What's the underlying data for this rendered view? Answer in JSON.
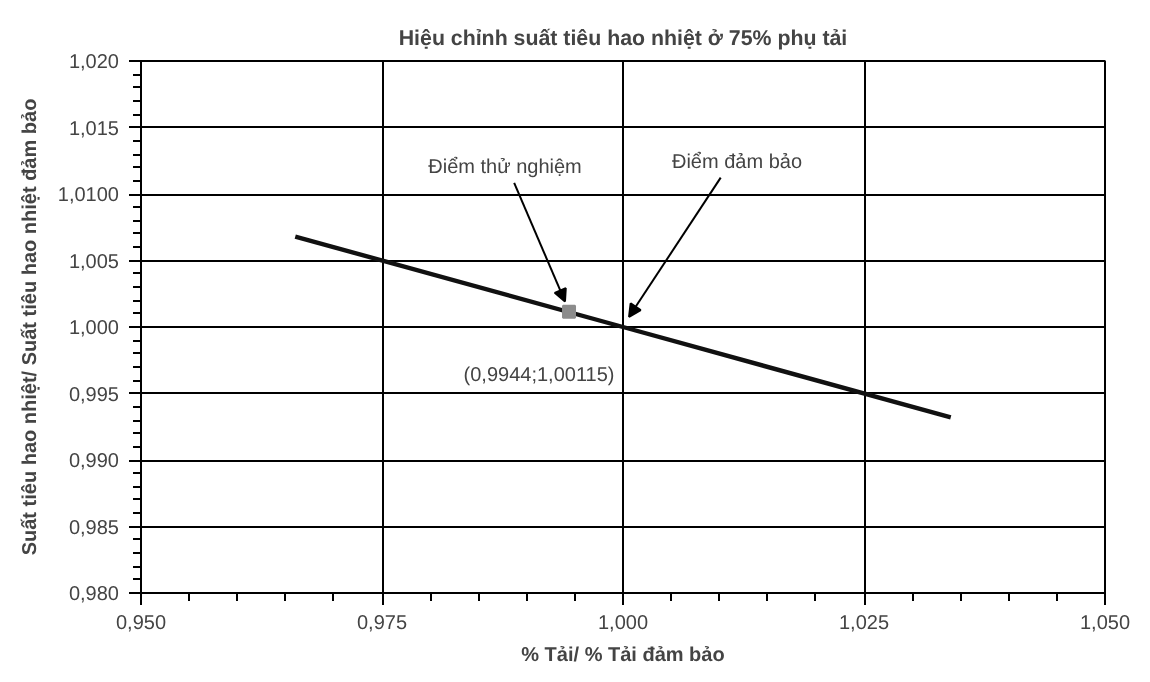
{
  "chart_data": {
    "type": "line",
    "title": "Hiệu chỉnh suất tiêu hao nhiệt ở 75% phụ tải",
    "xlabel": "% Tải/ % Tải đảm bảo",
    "ylabel": "Suất tiêu hao nhiệt/ Suất tiêu hao nhiệt đảm bảo",
    "xlim": [
      0.95,
      1.05
    ],
    "ylim": [
      0.98,
      1.02
    ],
    "xticks": [
      {
        "value": 0.95,
        "label": "0,950"
      },
      {
        "value": 0.975,
        "label": "0,975"
      },
      {
        "value": 1.0,
        "label": "1,000"
      },
      {
        "value": 1.025,
        "label": "1,025"
      },
      {
        "value": 1.05,
        "label": "1,050"
      }
    ],
    "yticks": [
      {
        "value": 0.98,
        "label": "0,980"
      },
      {
        "value": 0.985,
        "label": "0,985"
      },
      {
        "value": 0.99,
        "label": "0,990"
      },
      {
        "value": 0.995,
        "label": "0,995"
      },
      {
        "value": 1.0,
        "label": "1,000"
      },
      {
        "value": 1.005,
        "label": "1,005"
      },
      {
        "value": 1.01,
        "label": "1,0100"
      },
      {
        "value": 1.015,
        "label": "1,015"
      },
      {
        "value": 1.02,
        "label": "1,020"
      }
    ],
    "grid": true,
    "series": [
      {
        "color": "#111111",
        "x": [
          0.966,
          1.0,
          1.034
        ],
        "values": [
          1.0068,
          1.0,
          0.9932
        ]
      },
      {
        "type": "scatter",
        "color": "#8c8c8c",
        "marker": "square",
        "x": [
          0.9944
        ],
        "values": [
          1.00115
        ]
      }
    ],
    "annotations": [
      {
        "text": "Điểm thử nghiệm",
        "x": 0.9944,
        "y": 1.00115
      },
      {
        "text": "Điểm đảm bảo",
        "x": 1.0,
        "y": 1.0
      },
      "(0,9944;1,00115)"
    ]
  }
}
